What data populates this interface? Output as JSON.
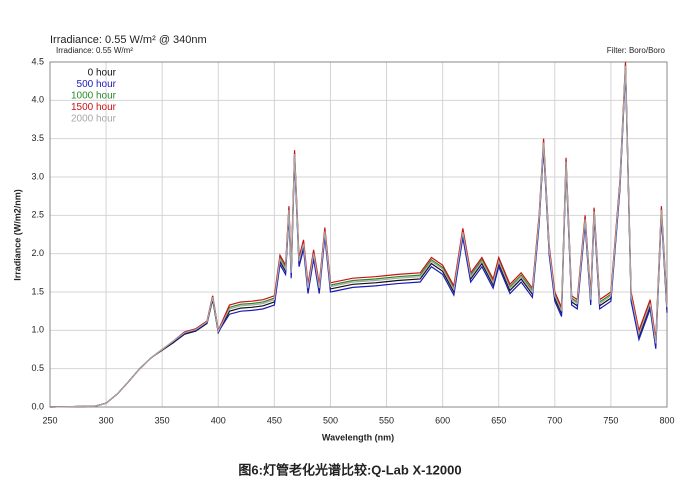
{
  "chart_data": {
    "type": "line",
    "title": "Irradiance: 0.55 W/m² @ 340nm",
    "subtitle": "Irradiance: 0.55 W/m²",
    "annotation": "Filter: Boro/Boro",
    "caption": "图6:灯管老化光谱比较:Q-Lab X-12000",
    "x_label": "Wavelength (nm)",
    "y_label": "Irradiance (W/m2/nm)",
    "xlim": [
      250,
      800
    ],
    "xticks": [
      250,
      300,
      350,
      400,
      450,
      500,
      550,
      600,
      650,
      700,
      750,
      800
    ],
    "ylim": [
      0,
      4.5
    ],
    "yticks": [
      {
        "value": 0,
        "label": "0.0"
      },
      {
        "value": 0.5,
        "label": "0.5"
      },
      {
        "value": 1,
        "label": "1.0"
      },
      {
        "value": 1.5,
        "label": "1.5"
      },
      {
        "value": 2,
        "label": "2.0"
      },
      {
        "value": 2.5,
        "label": "2.5"
      },
      {
        "value": 3,
        "label": "3.0"
      },
      {
        "value": 3.5,
        "label": "3.5"
      },
      {
        "value": 4,
        "label": "4.0"
      },
      {
        "value": 4.5,
        "label": "4.5"
      }
    ],
    "grid": true,
    "legend": "upper-left",
    "x": [
      250,
      290,
      300,
      310,
      320,
      330,
      340,
      350,
      360,
      370,
      380,
      390,
      395,
      400,
      410,
      420,
      430,
      440,
      450,
      455,
      460,
      463,
      465,
      468,
      472,
      476,
      480,
      485,
      490,
      495,
      500,
      520,
      540,
      560,
      580,
      590,
      600,
      610,
      618,
      625,
      635,
      645,
      650,
      660,
      670,
      680,
      686,
      690,
      695,
      700,
      706,
      710,
      715,
      720,
      727,
      732,
      735,
      740,
      750,
      758,
      763,
      768,
      775,
      785,
      790,
      795,
      800
    ],
    "series": [
      {
        "name": "0 hour",
        "color": "#111111",
        "values": [
          0,
          0.01,
          0.05,
          0.17,
          0.33,
          0.5,
          0.64,
          0.74,
          0.84,
          0.95,
          0.99,
          1.09,
          1.4,
          0.97,
          1.25,
          1.29,
          1.3,
          1.32,
          1.37,
          1.9,
          1.77,
          2.54,
          1.72,
          3.27,
          1.87,
          2.1,
          1.52,
          1.97,
          1.52,
          2.26,
          1.54,
          1.6,
          1.62,
          1.65,
          1.67,
          1.87,
          1.77,
          1.5,
          2.25,
          1.67,
          1.87,
          1.59,
          1.87,
          1.52,
          1.67,
          1.47,
          2.42,
          3.42,
          2.02,
          1.42,
          1.22,
          3.17,
          1.37,
          1.32,
          2.42,
          1.37,
          2.52,
          1.32,
          1.42,
          2.87,
          4.42,
          1.42,
          0.92,
          1.32,
          0.8,
          2.54,
          1.27
        ]
      },
      {
        "name": "500 hour",
        "color": "#1a1ab8",
        "values": [
          0,
          0.01,
          0.05,
          0.17,
          0.33,
          0.5,
          0.64,
          0.75,
          0.85,
          0.96,
          1.0,
          1.1,
          1.42,
          0.98,
          1.21,
          1.25,
          1.26,
          1.28,
          1.33,
          1.86,
          1.73,
          2.5,
          1.68,
          3.23,
          1.83,
          2.06,
          1.48,
          1.93,
          1.48,
          2.22,
          1.5,
          1.56,
          1.58,
          1.61,
          1.63,
          1.83,
          1.73,
          1.46,
          2.21,
          1.63,
          1.83,
          1.55,
          1.83,
          1.48,
          1.63,
          1.43,
          2.38,
          3.38,
          1.98,
          1.38,
          1.18,
          3.13,
          1.33,
          1.28,
          2.38,
          1.33,
          2.48,
          1.28,
          1.38,
          2.83,
          4.38,
          1.38,
          0.88,
          1.28,
          0.76,
          2.5,
          1.23
        ]
      },
      {
        "name": "1000 hour",
        "color": "#2a8a2a",
        "values": [
          0,
          0.01,
          0.05,
          0.17,
          0.33,
          0.5,
          0.64,
          0.75,
          0.86,
          0.98,
          1.02,
          1.12,
          1.45,
          1.0,
          1.3,
          1.34,
          1.35,
          1.37,
          1.42,
          1.95,
          1.82,
          2.59,
          1.77,
          3.32,
          1.92,
          2.15,
          1.57,
          2.02,
          1.57,
          2.31,
          1.59,
          1.65,
          1.67,
          1.7,
          1.72,
          1.92,
          1.82,
          1.55,
          2.3,
          1.72,
          1.92,
          1.64,
          1.92,
          1.57,
          1.72,
          1.52,
          2.47,
          3.47,
          2.07,
          1.47,
          1.27,
          3.22,
          1.42,
          1.37,
          2.47,
          1.42,
          2.57,
          1.37,
          1.47,
          2.92,
          4.47,
          1.47,
          0.97,
          1.37,
          0.85,
          2.59,
          1.32
        ]
      },
      {
        "name": "1500 hour",
        "color": "#cc1111",
        "values": [
          0,
          0.01,
          0.05,
          0.17,
          0.33,
          0.5,
          0.64,
          0.75,
          0.86,
          0.98,
          1.02,
          1.12,
          1.45,
          1.0,
          1.33,
          1.37,
          1.38,
          1.4,
          1.45,
          1.98,
          1.85,
          2.62,
          1.8,
          3.35,
          1.95,
          2.18,
          1.6,
          2.05,
          1.6,
          2.34,
          1.62,
          1.68,
          1.7,
          1.73,
          1.75,
          1.95,
          1.85,
          1.58,
          2.33,
          1.75,
          1.95,
          1.67,
          1.95,
          1.6,
          1.75,
          1.55,
          2.5,
          3.5,
          2.1,
          1.5,
          1.3,
          3.25,
          1.45,
          1.4,
          2.5,
          1.45,
          2.6,
          1.4,
          1.5,
          2.95,
          4.5,
          1.5,
          1.0,
          1.4,
          0.88,
          2.62,
          1.35
        ]
      },
      {
        "name": "2000 hour",
        "color": "#a8a8a8",
        "values": [
          0,
          0.01,
          0.05,
          0.17,
          0.33,
          0.5,
          0.64,
          0.75,
          0.86,
          0.97,
          1.01,
          1.11,
          1.43,
          0.99,
          1.28,
          1.32,
          1.33,
          1.35,
          1.4,
          1.93,
          1.8,
          2.57,
          1.75,
          3.3,
          1.9,
          2.13,
          1.55,
          2.0,
          1.55,
          2.29,
          1.57,
          1.63,
          1.65,
          1.68,
          1.7,
          1.9,
          1.8,
          1.53,
          2.28,
          1.7,
          1.9,
          1.62,
          1.9,
          1.55,
          1.7,
          1.5,
          2.45,
          3.45,
          2.05,
          1.45,
          1.25,
          3.2,
          1.4,
          1.35,
          2.45,
          1.4,
          2.55,
          1.35,
          1.45,
          2.9,
          4.45,
          1.45,
          0.95,
          1.35,
          0.83,
          2.57,
          1.3
        ]
      }
    ]
  }
}
